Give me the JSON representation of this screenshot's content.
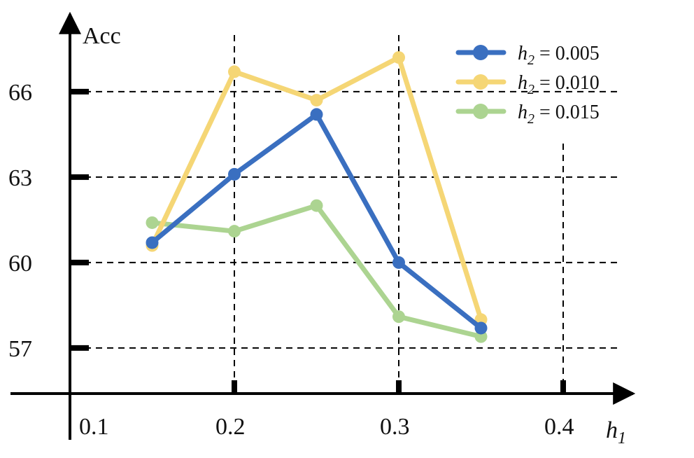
{
  "chart_data": {
    "type": "line",
    "title": "",
    "xlabel": "h1",
    "ylabel": "Acc",
    "x_ticks": [
      "0.1",
      "0.2",
      "0.3",
      "0.4"
    ],
    "y_ticks": [
      "57",
      "60",
      "63",
      "66"
    ],
    "xlim": [
      0.1,
      0.4
    ],
    "ylim": [
      55.4,
      68.4
    ],
    "grid": "dashed at ticks",
    "legend_position": "top-right",
    "series": [
      {
        "name": "h2 = 0.005",
        "color": "#3a6fc0",
        "x": [
          0.15,
          0.2,
          0.25,
          0.3,
          0.35
        ],
        "y": [
          60.7,
          63.1,
          65.2,
          60.0,
          57.7
        ]
      },
      {
        "name": "h2 = 0.010",
        "color": "#f5d675",
        "x": [
          0.15,
          0.2,
          0.25,
          0.3,
          0.35
        ],
        "y": [
          60.6,
          66.7,
          65.7,
          67.2,
          58.0
        ]
      },
      {
        "name": "h2 = 0.015",
        "color": "#acd491",
        "x": [
          0.15,
          0.2,
          0.25,
          0.3,
          0.35
        ],
        "y": [
          61.4,
          61.1,
          62.0,
          58.1,
          57.4
        ]
      }
    ]
  }
}
